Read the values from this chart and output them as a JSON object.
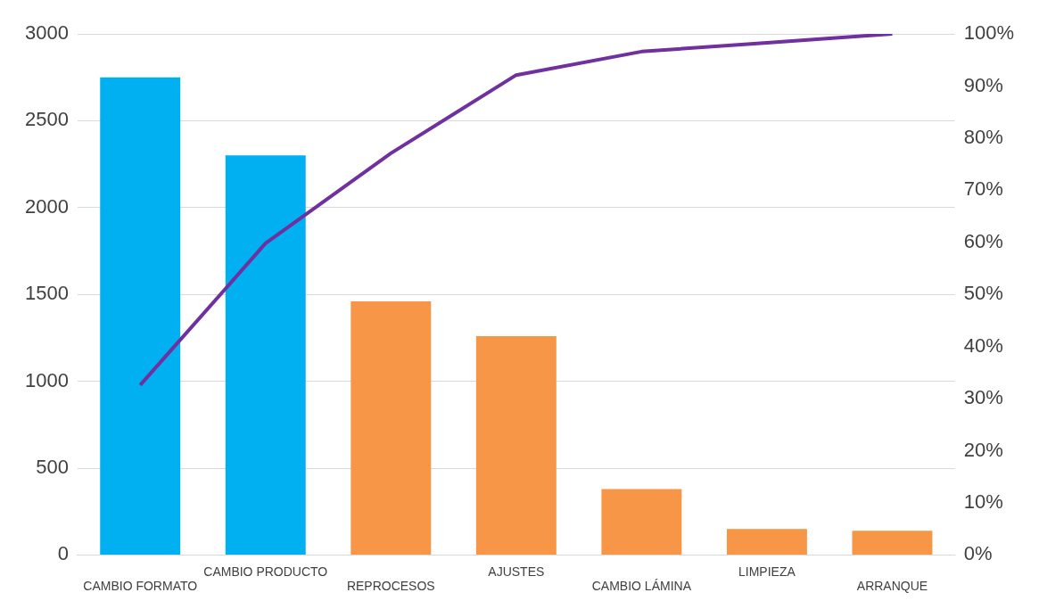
{
  "chart_data": {
    "type": "bar",
    "categories": [
      "CAMBIO FORMATO",
      "CAMBIO PRODUCTO",
      "REPROCESOS",
      "AJUSTES",
      "CAMBIO LÁMINA",
      "LIMPIEZA",
      "ARRANQUE"
    ],
    "series": [
      {
        "colors": [
          "#00b0f0",
          "#00b0f0",
          "#f79646",
          "#f79646",
          "#f79646",
          "#f79646",
          "#f79646"
        ],
        "values": [
          2750,
          2300,
          1460,
          1260,
          380,
          150,
          140
        ]
      },
      {
        "type": "line",
        "axis": "y2",
        "color": "#7030a0",
        "values": [
          32.6,
          59.8,
          77.1,
          92.1,
          96.6,
          98.3,
          100
        ]
      }
    ],
    "ylim": [
      0,
      3000
    ],
    "yticks": [
      0,
      500,
      1000,
      1500,
      2000,
      2500,
      3000
    ],
    "y2lim": [
      0,
      100
    ],
    "y2ticks": [
      {
        "value": 0,
        "label": "0%"
      },
      {
        "value": 10,
        "label": "10%"
      },
      {
        "value": 20,
        "label": "20%"
      },
      {
        "value": 30,
        "label": "30%"
      },
      {
        "value": 40,
        "label": "40%"
      },
      {
        "value": 50,
        "label": "50%"
      },
      {
        "value": 60,
        "label": "60%"
      },
      {
        "value": 70,
        "label": "70%"
      },
      {
        "value": 80,
        "label": "80%"
      },
      {
        "value": 90,
        "label": "90%"
      },
      {
        "value": 100,
        "label": "100%"
      }
    ],
    "grid": "y",
    "legend": false,
    "marker": "none",
    "line_style": "solid"
  }
}
